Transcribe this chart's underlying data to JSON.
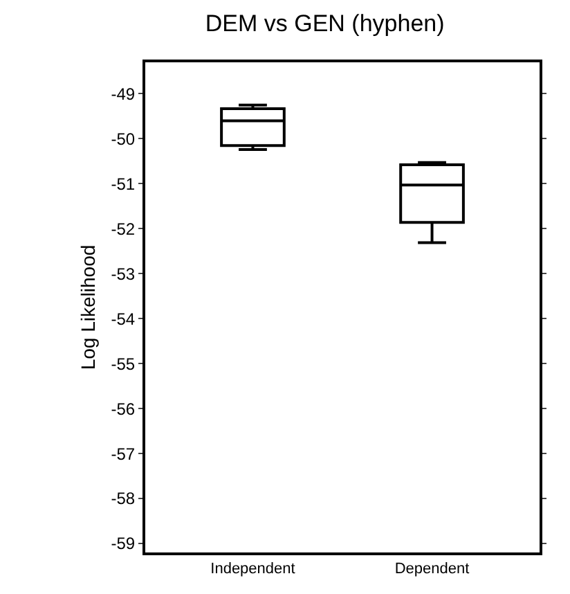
{
  "chart_data": {
    "type": "box",
    "title": "DEM vs GEN (hyphen)",
    "ylabel": "Log Likelihood",
    "categories": [
      "Independent",
      "Dependent"
    ],
    "boxes": [
      {
        "low": -50.24,
        "q1": -50.15,
        "median": -49.6,
        "q3": -49.33,
        "high": -49.25
      },
      {
        "low": -52.31,
        "q1": -51.86,
        "median": -51.03,
        "q3": -50.58,
        "high": -50.53
      }
    ],
    "color": "#000000",
    "ylim": [
      -59.2,
      -48.3
    ],
    "yticks": [
      -59,
      -58,
      -57,
      -56,
      -55,
      -54,
      -53,
      -52,
      -51,
      -50,
      -49
    ],
    "grid": false
  }
}
